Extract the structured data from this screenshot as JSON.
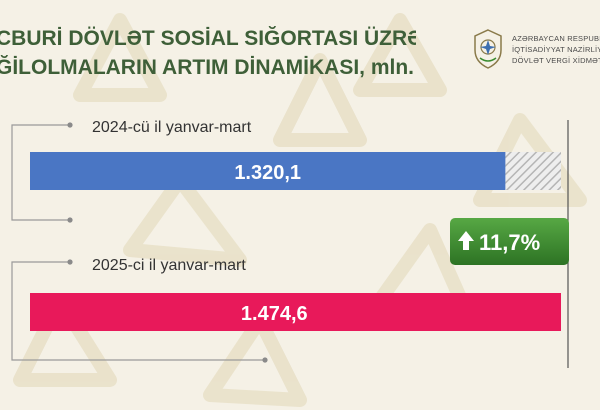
{
  "header": {
    "title_line1": "CBURİ DÖVLƏT SOSİAL SIĞORTASI ÜZRƏ",
    "title_line2": "ĞİLOLMALARIN ARTIM DİNAMİKASI, mln. manat"
  },
  "org": {
    "line1": "AZƏRBAYCAN RESPUBLİ",
    "line2": "İQTİSADİYYAT NAZİRLİY",
    "line3": "DÖVLƏT VERGİ XİDMƏT"
  },
  "colors": {
    "accent_title": "#3e5f38",
    "bar_2024": "#4a76c4",
    "bar_2025": "#e8195a",
    "badge": "#3a8c2f",
    "background": "#f5f1e6"
  },
  "chart_data": {
    "type": "bar",
    "orientation": "horizontal",
    "title": "CBURİ DÖVLƏT SOSİAL SIĞORTASI ÜZRƏ ĞİLOLMALARIN ARTIM DİNAMİKASI, mln. manat",
    "categories": [
      "2024-cü il yanvar-mart",
      "2025-ci il yanvar-mart"
    ],
    "values": [
      1320.1,
      1474.6
    ],
    "value_labels": [
      "1.320,1",
      "1.474,6"
    ],
    "xlim": [
      0,
      1474.6
    ],
    "grid": false,
    "growth_badge": "11,7%"
  }
}
